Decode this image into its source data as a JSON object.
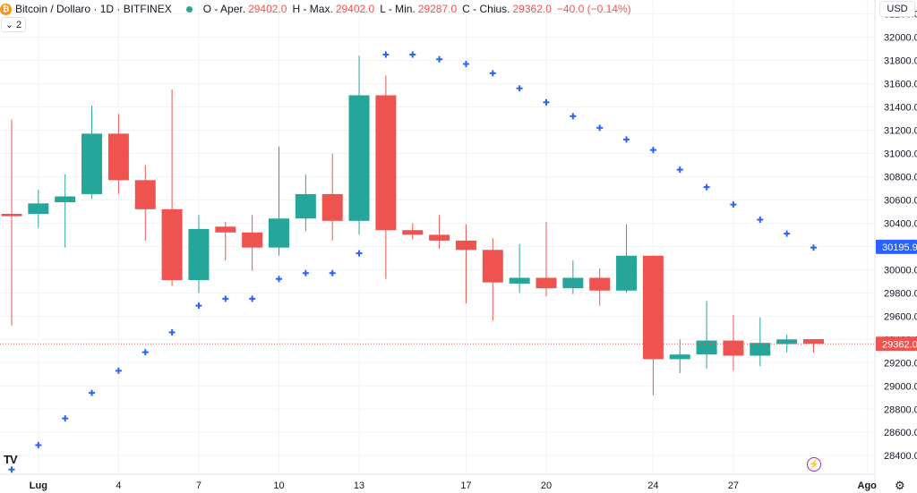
{
  "header": {
    "coin_symbol": "₿",
    "title": "Bitcoin / Dollaro · 1D · BITFINEX",
    "ohlc": [
      {
        "label": "O - Aper.",
        "value": "29402.0"
      },
      {
        "label": "H - Max.",
        "value": "29402.0"
      },
      {
        "label": "L - Min.",
        "value": "29287.0"
      },
      {
        "label": "C - Chius.",
        "value": "29362.0"
      }
    ],
    "change": "−40.0 (−0.14%)"
  },
  "indicator_toggle": {
    "chevron": "⌄",
    "count": "2"
  },
  "currency": "USD",
  "logo_text": "TV",
  "colors": {
    "up": "#26a69a",
    "down": "#ef5350",
    "sar": "#2962ff",
    "grid": "#f0f3fa",
    "axis_text": "#131722"
  },
  "chart_data": {
    "type": "candlestick",
    "y_ticks": [
      28400,
      28600,
      28800,
      29000,
      29200,
      29400,
      29600,
      29800,
      30000,
      30200,
      30400,
      30600,
      30800,
      31000,
      31200,
      31400,
      31600,
      31800,
      32000,
      32200
    ],
    "ylim": [
      28240,
      32320
    ],
    "x_ticks": [
      {
        "index": 1,
        "label": "Lug"
      },
      {
        "index": 4,
        "label": "4"
      },
      {
        "index": 7,
        "label": "7"
      },
      {
        "index": 10,
        "label": "10"
      },
      {
        "index": 13,
        "label": "13"
      },
      {
        "index": 17,
        "label": "17"
      },
      {
        "index": 20,
        "label": "20"
      },
      {
        "index": 24,
        "label": "24"
      },
      {
        "index": 27,
        "label": "27"
      },
      {
        "index": 32,
        "label": "Ago"
      }
    ],
    "candles": [
      {
        "o": 30480,
        "h": 31290,
        "l": 29520,
        "c": 30460
      },
      {
        "o": 30480,
        "h": 30690,
        "l": 30360,
        "c": 30570
      },
      {
        "o": 30580,
        "h": 30820,
        "l": 30190,
        "c": 30630
      },
      {
        "o": 30650,
        "h": 31410,
        "l": 30610,
        "c": 31170
      },
      {
        "o": 31170,
        "h": 31340,
        "l": 30650,
        "c": 30770
      },
      {
        "o": 30770,
        "h": 30900,
        "l": 30250,
        "c": 30520
      },
      {
        "o": 30520,
        "h": 31550,
        "l": 29860,
        "c": 29910
      },
      {
        "o": 29910,
        "h": 30470,
        "l": 29800,
        "c": 30350
      },
      {
        "o": 30370,
        "h": 30410,
        "l": 30080,
        "c": 30320
      },
      {
        "o": 30320,
        "h": 30470,
        "l": 29990,
        "c": 30190
      },
      {
        "o": 30190,
        "h": 31060,
        "l": 30120,
        "c": 30440
      },
      {
        "o": 30440,
        "h": 30820,
        "l": 30330,
        "c": 30650
      },
      {
        "o": 30650,
        "h": 31000,
        "l": 30250,
        "c": 30420
      },
      {
        "o": 30420,
        "h": 31840,
        "l": 30300,
        "c": 31500
      },
      {
        "o": 31500,
        "h": 31670,
        "l": 29920,
        "c": 30340
      },
      {
        "o": 30340,
        "h": 30400,
        "l": 30260,
        "c": 30300
      },
      {
        "o": 30300,
        "h": 30470,
        "l": 30180,
        "c": 30250
      },
      {
        "o": 30250,
        "h": 30390,
        "l": 29710,
        "c": 30170
      },
      {
        "o": 30170,
        "h": 30270,
        "l": 29560,
        "c": 29890
      },
      {
        "o": 29880,
        "h": 30220,
        "l": 29800,
        "c": 29930
      },
      {
        "o": 29930,
        "h": 30410,
        "l": 29770,
        "c": 29840
      },
      {
        "o": 29840,
        "h": 30080,
        "l": 29790,
        "c": 29930
      },
      {
        "o": 29930,
        "h": 30010,
        "l": 29690,
        "c": 29820
      },
      {
        "o": 29820,
        "h": 30390,
        "l": 29800,
        "c": 30120
      },
      {
        "o": 30120,
        "h": 30120,
        "l": 28920,
        "c": 29230
      },
      {
        "o": 29230,
        "h": 29400,
        "l": 29110,
        "c": 29270
      },
      {
        "o": 29270,
        "h": 29730,
        "l": 29150,
        "c": 29390
      },
      {
        "o": 29390,
        "h": 29610,
        "l": 29130,
        "c": 29260
      },
      {
        "o": 29260,
        "h": 29590,
        "l": 29170,
        "c": 29370
      },
      {
        "o": 29360,
        "h": 29440,
        "l": 29290,
        "c": 29400
      },
      {
        "o": 29402,
        "h": 29402,
        "l": 29287,
        "c": 29362
      }
    ],
    "parabolic_sar": [
      {
        "i": 0,
        "v": 28280
      },
      {
        "i": 1,
        "v": 28490
      },
      {
        "i": 2,
        "v": 28720
      },
      {
        "i": 3,
        "v": 28940
      },
      {
        "i": 4,
        "v": 29130
      },
      {
        "i": 5,
        "v": 29290
      },
      {
        "i": 6,
        "v": 29460
      },
      {
        "i": 7,
        "v": 29690
      },
      {
        "i": 8,
        "v": 29750
      },
      {
        "i": 9,
        "v": 29750
      },
      {
        "i": 10,
        "v": 29920
      },
      {
        "i": 11,
        "v": 29970
      },
      {
        "i": 12,
        "v": 29970
      },
      {
        "i": 13,
        "v": 30140
      },
      {
        "i": 14,
        "v": 31850
      },
      {
        "i": 15,
        "v": 31850
      },
      {
        "i": 16,
        "v": 31810
      },
      {
        "i": 17,
        "v": 31770
      },
      {
        "i": 18,
        "v": 31690
      },
      {
        "i": 19,
        "v": 31560
      },
      {
        "i": 20,
        "v": 31440
      },
      {
        "i": 21,
        "v": 31320
      },
      {
        "i": 22,
        "v": 31220
      },
      {
        "i": 23,
        "v": 31120
      },
      {
        "i": 24,
        "v": 31030
      },
      {
        "i": 25,
        "v": 30860
      },
      {
        "i": 26,
        "v": 30710
      },
      {
        "i": 27,
        "v": 30560
      },
      {
        "i": 28,
        "v": 30430
      },
      {
        "i": 29,
        "v": 30310
      },
      {
        "i": 30,
        "v": 30190
      }
    ],
    "last_price_label": "29362.0",
    "sar_price_label": "30195.9",
    "last_price": 29362,
    "sar_last": 30195.9
  }
}
